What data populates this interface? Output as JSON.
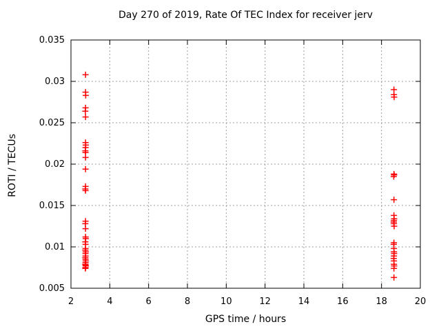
{
  "figure": {
    "background": "#ffffff"
  },
  "chart_data": {
    "type": "scatter",
    "title": "Day 270 of 2019, Rate Of TEC Index for receiver jerv",
    "xlabel": "GPS time / hours",
    "ylabel": "ROTI / TECUs",
    "xlim": [
      2,
      20
    ],
    "ylim": [
      0.005,
      0.035
    ],
    "xticks": [
      2,
      4,
      6,
      8,
      10,
      12,
      14,
      16,
      18,
      20
    ],
    "xtick_labels": [
      "2",
      "4",
      "6",
      "8",
      "10",
      "12",
      "14",
      "16",
      "18",
      "20"
    ],
    "yticks": [
      0.005,
      0.01,
      0.015,
      0.02,
      0.025,
      0.03,
      0.035
    ],
    "ytick_labels": [
      "0.005",
      "0.01",
      "0.015",
      "0.02",
      "0.025",
      "0.03",
      "0.035"
    ],
    "grid": true,
    "grid_color": "#9b9b9b",
    "axis_color": "#000000",
    "legend": "none",
    "marker": "plus",
    "series": [
      {
        "name": "ROTI",
        "color": "#ff0000",
        "points": [
          [
            2.75,
            0.0308
          ],
          [
            2.75,
            0.0287
          ],
          [
            2.76,
            0.0283
          ],
          [
            2.75,
            0.0268
          ],
          [
            2.74,
            0.0264
          ],
          [
            2.75,
            0.0257
          ],
          [
            2.75,
            0.0226
          ],
          [
            2.76,
            0.0223
          ],
          [
            2.75,
            0.022
          ],
          [
            2.74,
            0.0216
          ],
          [
            2.75,
            0.0214
          ],
          [
            2.75,
            0.0208
          ],
          [
            2.75,
            0.0194
          ],
          [
            2.75,
            0.0173
          ],
          [
            2.74,
            0.017
          ],
          [
            2.75,
            0.0168
          ],
          [
            2.75,
            0.0131
          ],
          [
            2.74,
            0.0128
          ],
          [
            2.75,
            0.0122
          ],
          [
            2.75,
            0.0112
          ],
          [
            2.76,
            0.011
          ],
          [
            2.74,
            0.0106
          ],
          [
            2.75,
            0.0103
          ],
          [
            2.75,
            0.0098
          ],
          [
            2.74,
            0.0096
          ],
          [
            2.76,
            0.0094
          ],
          [
            2.75,
            0.0092
          ],
          [
            2.75,
            0.0089
          ],
          [
            2.74,
            0.0087
          ],
          [
            2.75,
            0.0085
          ],
          [
            2.76,
            0.0083
          ],
          [
            2.75,
            0.0081
          ],
          [
            2.74,
            0.0079
          ],
          [
            2.75,
            0.0078
          ],
          [
            2.76,
            0.0077
          ],
          [
            2.75,
            0.0075
          ],
          [
            2.74,
            0.0074
          ],
          [
            18.64,
            0.029
          ],
          [
            18.64,
            0.0284
          ],
          [
            18.65,
            0.0281
          ],
          [
            18.64,
            0.0188
          ],
          [
            18.65,
            0.0187
          ],
          [
            18.63,
            0.0185
          ],
          [
            18.64,
            0.0157
          ],
          [
            18.64,
            0.0138
          ],
          [
            18.65,
            0.0134
          ],
          [
            18.64,
            0.0132
          ],
          [
            18.63,
            0.013
          ],
          [
            18.64,
            0.0128
          ],
          [
            18.65,
            0.0125
          ],
          [
            18.64,
            0.0105
          ],
          [
            18.63,
            0.0103
          ],
          [
            18.64,
            0.0098
          ],
          [
            18.64,
            0.0094
          ],
          [
            18.65,
            0.0092
          ],
          [
            18.64,
            0.0089
          ],
          [
            18.63,
            0.0086
          ],
          [
            18.64,
            0.0083
          ],
          [
            18.64,
            0.0079
          ],
          [
            18.65,
            0.0077
          ],
          [
            18.64,
            0.0074
          ],
          [
            18.64,
            0.0063
          ]
        ]
      }
    ]
  }
}
